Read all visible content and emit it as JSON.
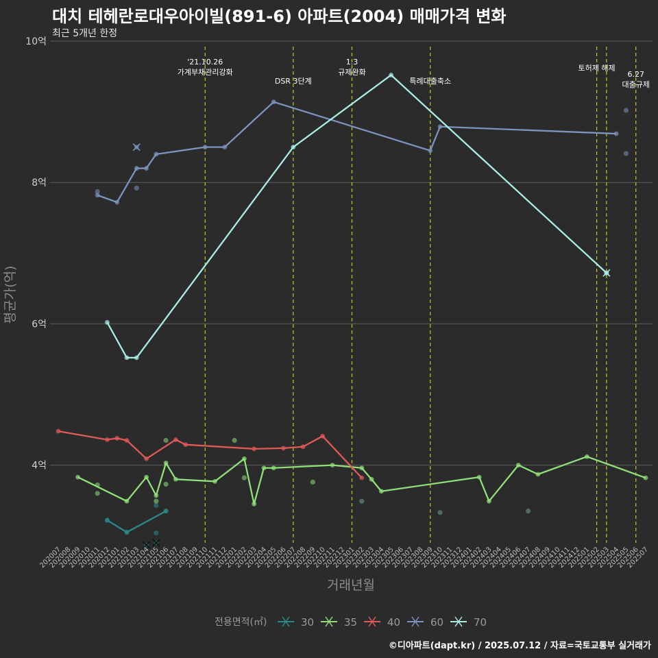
{
  "title": "대치 테헤란로대우아이빌(891-6) 아파트(2004) 매매가격 변화",
  "subtitle": "최근 5개년 한정",
  "caption": "©디아파트(dapt.kr) / 2025.07.12 / 자료=국토교통부 실거래가",
  "chart_data": {
    "type": "line",
    "xlabel": "거래년월",
    "ylabel": "평균가(억)",
    "ylim": [
      2.9,
      10
    ],
    "yticks": [
      4,
      6,
      8,
      10
    ],
    "ytick_labels": [
      "4억",
      "6억",
      "8억",
      "10억"
    ],
    "categories": [
      "202007",
      "202008",
      "202009",
      "202010",
      "202011",
      "202012",
      "202101",
      "202102",
      "202103",
      "202104",
      "202105",
      "202106",
      "202107",
      "202108",
      "202109",
      "202110",
      "202111",
      "202112",
      "202201",
      "202202",
      "202203",
      "202204",
      "202205",
      "202206",
      "202207",
      "202208",
      "202209",
      "202210",
      "202211",
      "202212",
      "202301",
      "202302",
      "202303",
      "202304",
      "202305",
      "202306",
      "202307",
      "202308",
      "202309",
      "202310",
      "202311",
      "202312",
      "202401",
      "202402",
      "202403",
      "202404",
      "202405",
      "202406",
      "202407",
      "202408",
      "202409",
      "202410",
      "202411",
      "202412",
      "202501",
      "202502",
      "202503",
      "202504",
      "202505",
      "202506",
      "202507"
    ],
    "legend_title": "전용면적(㎡)",
    "events": [
      {
        "x": "202110",
        "label": [
          "'21.10.26",
          "가계부채관리강화"
        ]
      },
      {
        "x": "202207",
        "label": [
          "DSR 3단계"
        ]
      },
      {
        "x": "202301",
        "label": [
          "1.3",
          "규제완화"
        ]
      },
      {
        "x": "202309",
        "label": [
          "특례대출축소"
        ]
      },
      {
        "x": "202502",
        "label": [
          "토허제 해제"
        ]
      },
      {
        "x": "202503",
        "label": []
      },
      {
        "x": "202506",
        "label": [
          "6.27",
          "대출규제"
        ]
      }
    ],
    "series": [
      {
        "name": "30",
        "color": "#2a8a8a",
        "line": [
          [
            "202012",
            3.22
          ],
          [
            "202102",
            3.05
          ],
          [
            "202106",
            3.35
          ]
        ],
        "points": [
          [
            "202012",
            3.22
          ],
          [
            "202102",
            3.05
          ],
          [
            "202105",
            3.43
          ],
          [
            "202105",
            3.04
          ],
          [
            "202106",
            3.35
          ]
        ],
        "crosses": [
          [
            "202104",
            2.87
          ],
          [
            "202105",
            2.9
          ]
        ]
      },
      {
        "name": "35",
        "color": "#90e07a",
        "line": [
          [
            "202009",
            3.83
          ],
          [
            "202102",
            3.49
          ],
          [
            "202104",
            3.83
          ],
          [
            "202105",
            3.57
          ],
          [
            "202106",
            4.03
          ],
          [
            "202107",
            3.8
          ],
          [
            "202111",
            3.77
          ],
          [
            "202202",
            4.09
          ],
          [
            "202203",
            3.45
          ],
          [
            "202204",
            3.96
          ],
          [
            "202205",
            3.96
          ],
          [
            "202211",
            4.0
          ],
          [
            "202302",
            3.96
          ],
          [
            "202303",
            3.8
          ],
          [
            "202304",
            3.63
          ],
          [
            "202402",
            3.83
          ],
          [
            "202403",
            3.49
          ],
          [
            "202406",
            4.0
          ],
          [
            "202408",
            3.87
          ],
          [
            "202501",
            4.12
          ],
          [
            "202507",
            3.82
          ]
        ],
        "points": [
          [
            "202011",
            3.72
          ],
          [
            "202011",
            3.6
          ],
          [
            "202105",
            3.49
          ],
          [
            "202106",
            4.35
          ],
          [
            "202106",
            3.73
          ],
          [
            "202201",
            4.35
          ],
          [
            "202202",
            3.82
          ],
          [
            "202209",
            3.76
          ]
        ],
        "crosses": []
      },
      {
        "name": "40",
        "color": "#e05a5a",
        "line": [
          [
            "202007",
            4.48
          ],
          [
            "202012",
            4.36
          ],
          [
            "202101",
            4.38
          ],
          [
            "202102",
            4.35
          ],
          [
            "202104",
            4.09
          ],
          [
            "202107",
            4.36
          ],
          [
            "202108",
            4.29
          ],
          [
            "202203",
            4.23
          ],
          [
            "202206",
            4.24
          ],
          [
            "202208",
            4.26
          ],
          [
            "202210",
            4.41
          ],
          [
            "202302",
            3.82
          ]
        ],
        "points": [],
        "crosses": []
      },
      {
        "name": "60",
        "color": "#7c94c0",
        "line": [
          [
            "202011",
            7.82
          ],
          [
            "202101",
            7.72
          ],
          [
            "202103",
            8.2
          ],
          [
            "202104",
            8.2
          ],
          [
            "202105",
            8.4
          ],
          [
            "202110",
            8.5
          ],
          [
            "202112",
            8.5
          ],
          [
            "202205",
            9.14
          ],
          [
            "202309",
            8.45
          ],
          [
            "202310",
            8.79
          ],
          [
            "202504",
            8.69
          ]
        ],
        "points": [
          [
            "202011",
            7.87
          ],
          [
            "202103",
            7.92
          ],
          [
            "202505",
            9.02
          ],
          [
            "202505",
            8.41
          ]
        ],
        "crosses": [
          [
            "202103",
            8.5
          ]
        ]
      },
      {
        "name": "70",
        "color": "#a8eee6",
        "line": [
          [
            "202012",
            6.02
          ],
          [
            "202102",
            5.52
          ],
          [
            "202103",
            5.52
          ],
          [
            "202207",
            8.5
          ],
          [
            "202305",
            9.52
          ],
          [
            "202503",
            6.72
          ]
        ],
        "points": [],
        "crosses": [
          [
            "202503",
            6.72
          ]
        ]
      }
    ],
    "other_points_color": "#5a7a7a",
    "other_points": [
      [
        "202302",
        3.49
      ],
      [
        "202310",
        3.33
      ],
      [
        "202407",
        3.35
      ]
    ]
  }
}
